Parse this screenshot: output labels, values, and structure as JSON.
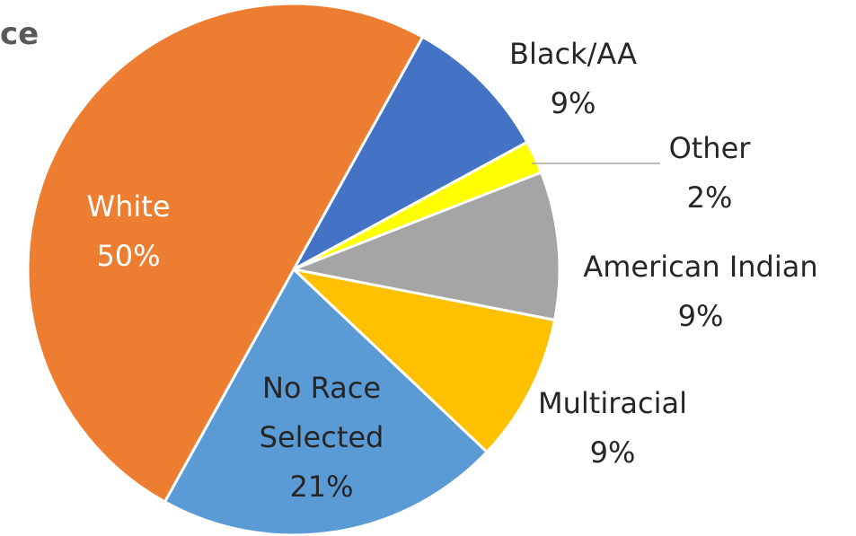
{
  "chart_data": {
    "type": "pie",
    "title": "ce",
    "categories": [
      "Black/AA",
      "Other",
      "American Indian",
      "Multiracial",
      "No Race Selected",
      "White"
    ],
    "values": [
      9,
      2,
      9,
      9,
      21,
      50
    ],
    "value_labels": [
      "9%",
      "2%",
      "9%",
      "9%",
      "21%",
      "50%"
    ],
    "colors": [
      "#4472c4",
      "#ffff00",
      "#a5a5a5",
      "#ffc000",
      "#5b9bd5",
      "#ed7d31"
    ]
  }
}
